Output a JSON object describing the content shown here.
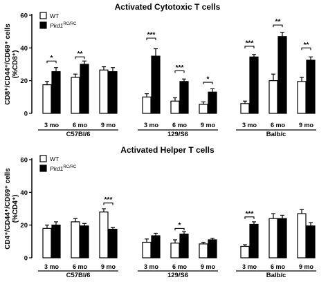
{
  "chart_data": [
    {
      "type": "bar",
      "title": "Activated Cytotoxic T cells",
      "ylabel_line1": "CD8⁺/CD44⁺/CD69⁺ cells",
      "ylabel_line2": "(%CD8⁺)",
      "ylim": [
        0,
        60
      ],
      "yticks": [
        0,
        20,
        40,
        60
      ],
      "categories": [
        "3 mo",
        "6 mo",
        "9 mo",
        "3 mo",
        "6 mo",
        "9 mo",
        "3 mo",
        "6 mo",
        "9 mo"
      ],
      "groups": [
        {
          "label": "C57Bl/6",
          "start": 0,
          "count": 3
        },
        {
          "label": "129/S6",
          "start": 3,
          "count": 3
        },
        {
          "label": "Balb/c",
          "start": 6,
          "count": 3
        }
      ],
      "legend": [
        {
          "name": "WT",
          "fill": "#ffffff"
        },
        {
          "name": "Pkd1",
          "sup": "RC/RC",
          "fill": "#000000"
        }
      ],
      "series": [
        {
          "name": "WT",
          "values": [
            17.5,
            22,
            26.5,
            10,
            7.5,
            5.5,
            6,
            20,
            19.5
          ],
          "errors": [
            2,
            2,
            2,
            2,
            2,
            1.5,
            1.5,
            4,
            2.5
          ]
        },
        {
          "name": "Pkd1",
          "values": [
            25.5,
            30,
            25.5,
            35,
            19.5,
            13,
            34.5,
            47,
            32.5
          ],
          "errors": [
            2.5,
            2,
            2.5,
            4.5,
            1.5,
            2,
            1.5,
            2.5,
            2
          ]
        }
      ],
      "significance": [
        {
          "index": 0,
          "label": "*",
          "y": 32
        },
        {
          "index": 1,
          "label": "**",
          "y": 34.5
        },
        {
          "index": 3,
          "label": "***",
          "y": 46
        },
        {
          "index": 4,
          "label": "***",
          "y": 26
        },
        {
          "index": 5,
          "label": "*",
          "y": 19
        },
        {
          "index": 6,
          "label": "***",
          "y": 41
        },
        {
          "index": 7,
          "label": "**",
          "y": 54
        },
        {
          "index": 8,
          "label": "**",
          "y": 40
        }
      ]
    },
    {
      "type": "bar",
      "title": "Activated Helper T cells",
      "ylabel_line1": "CD4⁺/CD44⁺/CD69⁺ cells",
      "ylabel_line2": "(%CD4⁺)",
      "ylim": [
        0,
        60
      ],
      "yticks": [
        0,
        20,
        40,
        60
      ],
      "categories": [
        "3 mo",
        "6 mo",
        "9 mo",
        "3 mo",
        "6 mo",
        "9 mo",
        "3 mo",
        "6 mo",
        "9 mo"
      ],
      "groups": [
        {
          "label": "C57Bl/6",
          "start": 0,
          "count": 3
        },
        {
          "label": "129/S6",
          "start": 3,
          "count": 3
        },
        {
          "label": "Balb/c",
          "start": 6,
          "count": 3
        }
      ],
      "legend": [
        {
          "name": "WT",
          "fill": "#ffffff"
        },
        {
          "name": "Pkd1",
          "sup": "RC/RC",
          "fill": "#000000"
        }
      ],
      "series": [
        {
          "name": "WT",
          "values": [
            18,
            22,
            28,
            9.5,
            9,
            8.5,
            7,
            24,
            27
          ],
          "errors": [
            2,
            2,
            2,
            2,
            2,
            1,
            1,
            3,
            2.5
          ]
        },
        {
          "name": "Pkd1",
          "values": [
            20,
            19.5,
            17.5,
            13.5,
            14.5,
            11,
            20.5,
            24,
            19.5
          ],
          "errors": [
            2,
            1.5,
            1,
            1.5,
            1.5,
            1,
            1.5,
            2,
            2
          ]
        }
      ],
      "significance": [
        {
          "index": 2,
          "label": "***",
          "y": 33.5
        },
        {
          "index": 4,
          "label": "*",
          "y": 18
        },
        {
          "index": 6,
          "label": "***",
          "y": 25
        }
      ]
    }
  ]
}
